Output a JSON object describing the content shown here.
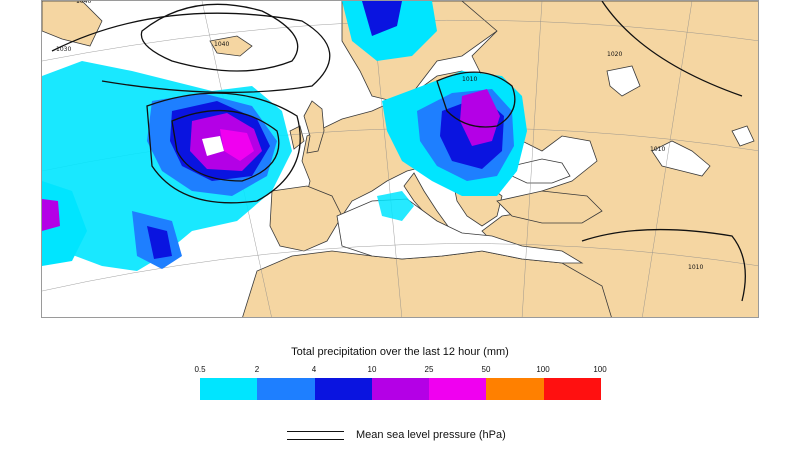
{
  "map": {
    "isobar_labels": [
      "1040",
      "1030",
      "1040",
      "1010",
      "1020",
      "1010",
      "1010"
    ],
    "colors": {
      "land": "#f5d6a2",
      "sea": "#ffffff",
      "coast": "#3a3a3a",
      "isobar": "#111111"
    }
  },
  "legend": {
    "precip_title": "Total precipitation over the last 12 hour (mm)",
    "ticks": [
      "0.5",
      "2",
      "4",
      "10",
      "25",
      "50",
      "100",
      "100"
    ],
    "colors": [
      "#00e5ff",
      "#1e7fff",
      "#0a14e0",
      "#b400e6",
      "#f000f0",
      "#ff8000",
      "#ff1010"
    ],
    "pressure_label": "Mean sea level pressure (hPa)"
  }
}
